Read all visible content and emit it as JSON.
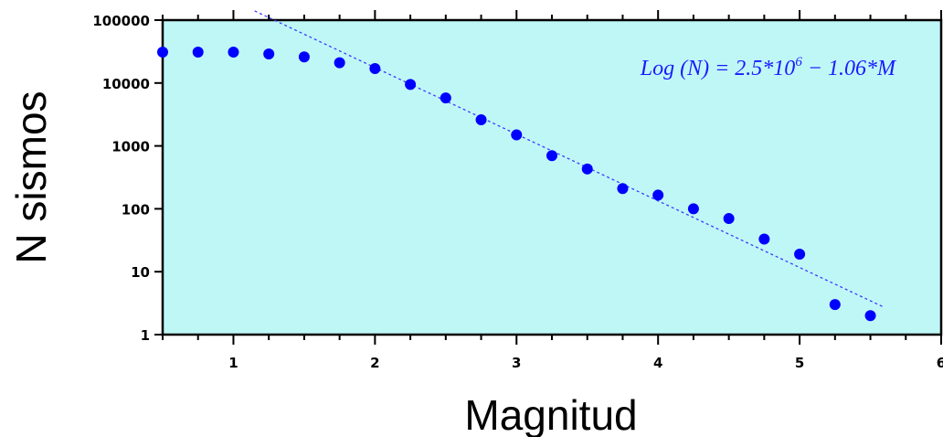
{
  "chart_data": {
    "type": "scatter",
    "title": "",
    "xlabel": "Magnitud",
    "ylabel": "N sismos",
    "xlim": [
      0.5,
      6
    ],
    "ylim": [
      1,
      100000
    ],
    "yscale": "log",
    "x_ticks": [
      1,
      2,
      3,
      4,
      5,
      6
    ],
    "y_ticks": [
      1,
      10,
      100,
      1000,
      10000,
      100000
    ],
    "y_tick_labels": [
      "1",
      "10",
      "100",
      "1000",
      "10000",
      "100000"
    ],
    "grid": false,
    "background_color": "#bff7f7",
    "point_color": "#0000ff",
    "fit_line_color": "#3c3cff",
    "series": [
      {
        "x": [
          0.5,
          0.75,
          1.0,
          1.25,
          1.5,
          1.75,
          2.0,
          2.25,
          2.5,
          2.75,
          3.0,
          3.25,
          3.5,
          3.75,
          4.0,
          4.25,
          4.5,
          4.75,
          5.0,
          5.25,
          5.5
        ],
        "y": [
          31000,
          31000,
          31000,
          29000,
          26000,
          21000,
          17000,
          9500,
          5800,
          2600,
          1500,
          700,
          430,
          210,
          165,
          100,
          70,
          33,
          19,
          3,
          2
        ]
      }
    ],
    "fit_line": {
      "x": [
        1.15,
        5.6
      ],
      "y": [
        140000,
        2.7
      ]
    },
    "annotation": {
      "prefix": "Log (N) = 2.5*10",
      "superscript": "6",
      "suffix": " − 1.06*M"
    }
  }
}
